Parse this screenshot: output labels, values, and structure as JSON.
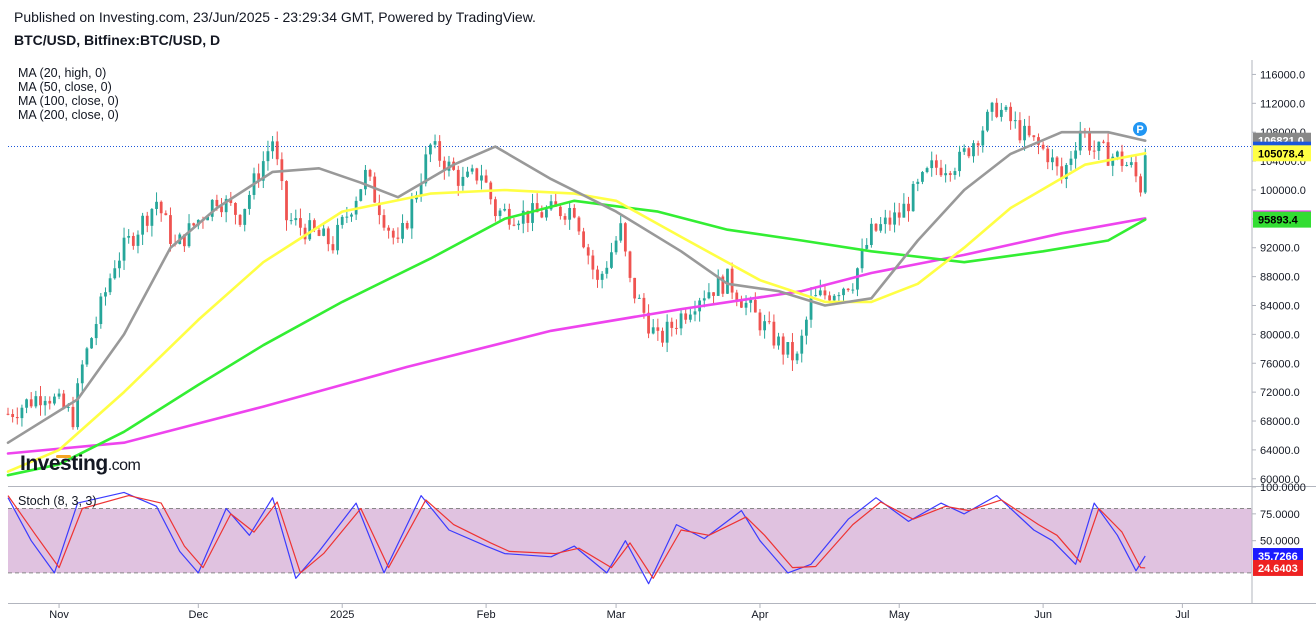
{
  "header": {
    "published": "Published on Investing.com, 23/Jun/2025 - 23:29:34 GMT, Powered by TradingView.",
    "symbol": "BTC/USD, Bitfinex:BTC/USD, D"
  },
  "legend": [
    {
      "label": "MA (20, high, 0)",
      "color": "#999999"
    },
    {
      "label": "MA (50, close, 0)",
      "color": "#ffff44"
    },
    {
      "label": "MA (100, close, 0)",
      "color": "#33ee33"
    },
    {
      "label": "MA (200, close, 0)",
      "color": "#ee44ee"
    }
  ],
  "logo": {
    "brand": "Investing",
    "suffix": ".com"
  },
  "marker": {
    "letter": "P"
  },
  "chart_data": [
    {
      "type": "candlestick",
      "title": "BTC/USD, Bitfinex:BTC/USD, D",
      "ylim": [
        59000,
        118000
      ],
      "y_ticks": [
        "116000.0",
        "112000.0",
        "108000.0",
        "104000.0",
        "100000.0",
        "96000.0",
        "92000.0",
        "88000.0",
        "84000.0",
        "80000.0",
        "76000.0",
        "72000.0",
        "68000.0",
        "64000.0",
        "60000.0"
      ],
      "x_ticks": [
        "Nov",
        "Dec",
        "2025",
        "Feb",
        "Mar",
        "Apr",
        "May",
        "Jun",
        "Jul"
      ],
      "x_tick_dates": [
        "2024-11-01",
        "2024-12-01",
        "2025-01-01",
        "2025-02-01",
        "2025-03-01",
        "2025-04-01",
        "2025-05-01",
        "2025-06-01",
        "2025-07-01"
      ],
      "x_range": [
        "2024-10-21",
        "2025-07-16"
      ],
      "last_price_line": 106821,
      "price_labels": [
        {
          "value": "106821.0",
          "price": 106821,
          "bg": "#888888",
          "fg": "#ffffff"
        },
        {
          "value": "105580.0",
          "price": 105580,
          "bg": "#1a56db",
          "fg": "#ffffff"
        },
        {
          "value": "105078.4",
          "price": 105078,
          "bg": "#ffff44",
          "fg": "#000000"
        },
        {
          "value": "96061.9",
          "price": 96062,
          "bg": "#ee44ee",
          "fg": "#ffffff"
        },
        {
          "value": "95893.4",
          "price": 95893,
          "bg": "#33dd33",
          "fg": "#000000"
        }
      ],
      "candles_anchor": [
        [
          "2024-10-21",
          69000
        ],
        [
          "2024-10-29",
          72000
        ],
        [
          "2024-11-04",
          68500
        ],
        [
          "2024-11-06",
          75500
        ],
        [
          "2024-11-13",
          90000
        ],
        [
          "2024-11-22",
          98500
        ],
        [
          "2024-11-26",
          92000
        ],
        [
          "2024-12-05",
          99000
        ],
        [
          "2024-12-10",
          96500
        ],
        [
          "2024-12-17",
          107000
        ],
        [
          "2024-12-20",
          96000
        ],
        [
          "2024-12-30",
          92500
        ],
        [
          "2025-01-06",
          102000
        ],
        [
          "2025-01-13",
          92000
        ],
        [
          "2025-01-20",
          106000
        ],
        [
          "2025-01-27",
          101000
        ],
        [
          "2025-01-31",
          102500
        ],
        [
          "2025-02-03",
          97000
        ],
        [
          "2025-02-10",
          96500
        ],
        [
          "2025-02-20",
          97500
        ],
        [
          "2025-02-25",
          87000
        ],
        [
          "2025-03-02",
          94500
        ],
        [
          "2025-03-04",
          87000
        ],
        [
          "2025-03-10",
          79000
        ],
        [
          "2025-03-19",
          85500
        ],
        [
          "2025-03-25",
          87500
        ],
        [
          "2025-03-31",
          82500
        ],
        [
          "2025-04-06",
          78000
        ],
        [
          "2025-04-09",
          76500
        ],
        [
          "2025-04-12",
          84500
        ],
        [
          "2025-04-21",
          87500
        ],
        [
          "2025-04-25",
          94000
        ],
        [
          "2025-05-01",
          96500
        ],
        [
          "2025-05-08",
          103000
        ],
        [
          "2025-05-14",
          104000
        ],
        [
          "2025-05-22",
          111500
        ],
        [
          "2025-05-28",
          107500
        ],
        [
          "2025-06-02",
          105000
        ],
        [
          "2025-06-05",
          101500
        ],
        [
          "2025-06-09",
          108500
        ],
        [
          "2025-06-12",
          105500
        ],
        [
          "2025-06-17",
          104500
        ],
        [
          "2025-06-20",
          103000
        ],
        [
          "2025-06-22",
          100500
        ],
        [
          "2025-06-23",
          105580
        ]
      ],
      "ma20_high": [
        [
          "2024-10-21",
          65000
        ],
        [
          "2024-11-05",
          71000
        ],
        [
          "2024-11-15",
          80000
        ],
        [
          "2024-11-25",
          92000
        ],
        [
          "2024-12-05",
          97500
        ],
        [
          "2024-12-17",
          102500
        ],
        [
          "2024-12-27",
          103000
        ],
        [
          "2025-01-05",
          101000
        ],
        [
          "2025-01-13",
          99000
        ],
        [
          "2025-01-25",
          103500
        ],
        [
          "2025-02-03",
          106000
        ],
        [
          "2025-02-15",
          101500
        ],
        [
          "2025-03-01",
          97000
        ],
        [
          "2025-03-15",
          91500
        ],
        [
          "2025-03-25",
          87000
        ],
        [
          "2025-04-05",
          86000
        ],
        [
          "2025-04-15",
          84000
        ],
        [
          "2025-04-25",
          85000
        ],
        [
          "2025-05-05",
          93000
        ],
        [
          "2025-05-15",
          100000
        ],
        [
          "2025-05-25",
          105000
        ],
        [
          "2025-06-05",
          108000
        ],
        [
          "2025-06-15",
          108000
        ],
        [
          "2025-06-23",
          106821
        ]
      ],
      "ma50_close": [
        [
          "2024-10-21",
          61000
        ],
        [
          "2024-11-01",
          64000
        ],
        [
          "2024-11-15",
          72000
        ],
        [
          "2024-12-01",
          82000
        ],
        [
          "2024-12-15",
          90000
        ],
        [
          "2025-01-01",
          97000
        ],
        [
          "2025-01-20",
          99500
        ],
        [
          "2025-02-05",
          100000
        ],
        [
          "2025-02-20",
          99500
        ],
        [
          "2025-03-01",
          98500
        ],
        [
          "2025-03-15",
          93500
        ],
        [
          "2025-04-01",
          87500
        ],
        [
          "2025-04-15",
          84500
        ],
        [
          "2025-04-25",
          84500
        ],
        [
          "2025-05-05",
          87000
        ],
        [
          "2025-05-15",
          92000
        ],
        [
          "2025-05-25",
          97500
        ],
        [
          "2025-06-10",
          103500
        ],
        [
          "2025-06-23",
          105078
        ]
      ],
      "ma100_close": [
        [
          "2024-10-21",
          60500
        ],
        [
          "2024-11-01",
          62000
        ],
        [
          "2024-11-15",
          66500
        ],
        [
          "2024-12-01",
          73000
        ],
        [
          "2024-12-15",
          78500
        ],
        [
          "2025-01-01",
          84500
        ],
        [
          "2025-01-20",
          90500
        ],
        [
          "2025-02-05",
          96000
        ],
        [
          "2025-02-20",
          98500
        ],
        [
          "2025-03-10",
          97000
        ],
        [
          "2025-03-25",
          94500
        ],
        [
          "2025-04-10",
          93000
        ],
        [
          "2025-04-25",
          91500
        ],
        [
          "2025-05-15",
          90000
        ],
        [
          "2025-06-01",
          91500
        ],
        [
          "2025-06-15",
          93000
        ],
        [
          "2025-06-23",
          95893
        ]
      ],
      "ma200_close": [
        [
          "2024-10-21",
          63500
        ],
        [
          "2024-11-15",
          65000
        ],
        [
          "2024-12-15",
          70000
        ],
        [
          "2025-01-15",
          75500
        ],
        [
          "2025-02-15",
          80500
        ],
        [
          "2025-03-15",
          83500
        ],
        [
          "2025-04-10",
          86000
        ],
        [
          "2025-04-25",
          88500
        ],
        [
          "2025-05-15",
          91000
        ],
        [
          "2025-06-05",
          94000
        ],
        [
          "2025-06-23",
          96062
        ]
      ]
    },
    {
      "type": "line",
      "title": "Stoch (8, 3, 3)",
      "ylim": [
        -8,
        100
      ],
      "y_ticks": [
        "100.0000",
        "75.0000",
        "50.0000"
      ],
      "y_tick_values": [
        100,
        75,
        50
      ],
      "band": [
        20,
        80
      ],
      "series": [
        {
          "color": "#3b3bff",
          "points": [
            [
              "2024-10-21",
              90
            ],
            [
              "2024-10-26",
              50
            ],
            [
              "2024-10-31",
              20
            ],
            [
              "2024-11-05",
              85
            ],
            [
              "2024-11-15",
              95
            ],
            [
              "2024-11-22",
              82
            ],
            [
              "2024-11-27",
              40
            ],
            [
              "2024-12-01",
              20
            ],
            [
              "2024-12-07",
              80
            ],
            [
              "2024-12-12",
              55
            ],
            [
              "2024-12-17",
              90
            ],
            [
              "2024-12-22",
              15
            ],
            [
              "2024-12-27",
              40
            ],
            [
              "2025-01-04",
              85
            ],
            [
              "2025-01-10",
              20
            ],
            [
              "2025-01-18",
              92
            ],
            [
              "2025-01-24",
              60
            ],
            [
              "2025-02-01",
              45
            ],
            [
              "2025-02-05",
              38
            ],
            [
              "2025-02-15",
              35
            ],
            [
              "2025-02-20",
              45
            ],
            [
              "2025-02-27",
              20
            ],
            [
              "2025-03-03",
              50
            ],
            [
              "2025-03-08",
              10
            ],
            [
              "2025-03-14",
              65
            ],
            [
              "2025-03-20",
              52
            ],
            [
              "2025-03-28",
              78
            ],
            [
              "2025-04-01",
              50
            ],
            [
              "2025-04-07",
              20
            ],
            [
              "2025-04-12",
              28
            ],
            [
              "2025-04-20",
              70
            ],
            [
              "2025-04-26",
              90
            ],
            [
              "2025-05-03",
              68
            ],
            [
              "2025-05-10",
              85
            ],
            [
              "2025-05-15",
              75
            ],
            [
              "2025-05-22",
              92
            ],
            [
              "2025-05-30",
              60
            ],
            [
              "2025-06-03",
              50
            ],
            [
              "2025-06-08",
              28
            ],
            [
              "2025-06-12",
              85
            ],
            [
              "2025-06-17",
              55
            ],
            [
              "2025-06-21",
              22
            ],
            [
              "2025-06-23",
              35.7266
            ]
          ]
        },
        {
          "color": "#ee3333",
          "points": [
            [
              "2024-10-21",
              92
            ],
            [
              "2024-10-27",
              55
            ],
            [
              "2024-11-01",
              25
            ],
            [
              "2024-11-06",
              80
            ],
            [
              "2024-11-16",
              92
            ],
            [
              "2024-11-23",
              85
            ],
            [
              "2024-11-28",
              45
            ],
            [
              "2024-12-02",
              25
            ],
            [
              "2024-12-08",
              75
            ],
            [
              "2024-12-13",
              58
            ],
            [
              "2024-12-18",
              86
            ],
            [
              "2024-12-23",
              20
            ],
            [
              "2024-12-28",
              38
            ],
            [
              "2025-01-05",
              80
            ],
            [
              "2025-01-11",
              25
            ],
            [
              "2025-01-19",
              88
            ],
            [
              "2025-01-25",
              65
            ],
            [
              "2025-02-02",
              48
            ],
            [
              "2025-02-06",
              40
            ],
            [
              "2025-02-16",
              38
            ],
            [
              "2025-02-21",
              43
            ],
            [
              "2025-02-28",
              25
            ],
            [
              "2025-03-04",
              48
            ],
            [
              "2025-03-09",
              15
            ],
            [
              "2025-03-15",
              60
            ],
            [
              "2025-03-21",
              55
            ],
            [
              "2025-03-29",
              72
            ],
            [
              "2025-04-02",
              55
            ],
            [
              "2025-04-08",
              25
            ],
            [
              "2025-04-13",
              26
            ],
            [
              "2025-04-21",
              65
            ],
            [
              "2025-04-27",
              86
            ],
            [
              "2025-05-04",
              70
            ],
            [
              "2025-05-11",
              82
            ],
            [
              "2025-05-16",
              78
            ],
            [
              "2025-05-23",
              88
            ],
            [
              "2025-05-31",
              65
            ],
            [
              "2025-06-04",
              55
            ],
            [
              "2025-06-09",
              30
            ],
            [
              "2025-06-13",
              80
            ],
            [
              "2025-06-18",
              58
            ],
            [
              "2025-06-22",
              25
            ],
            [
              "2025-06-23",
              24.6403
            ]
          ]
        }
      ],
      "last_labels": [
        {
          "value": "35.7266",
          "y": 35.7266,
          "bg": "#1a1aff",
          "fg": "#ffffff"
        },
        {
          "value": "24.6403",
          "y": 24.6403,
          "bg": "#ee2222",
          "fg": "#ffffff"
        }
      ]
    }
  ]
}
